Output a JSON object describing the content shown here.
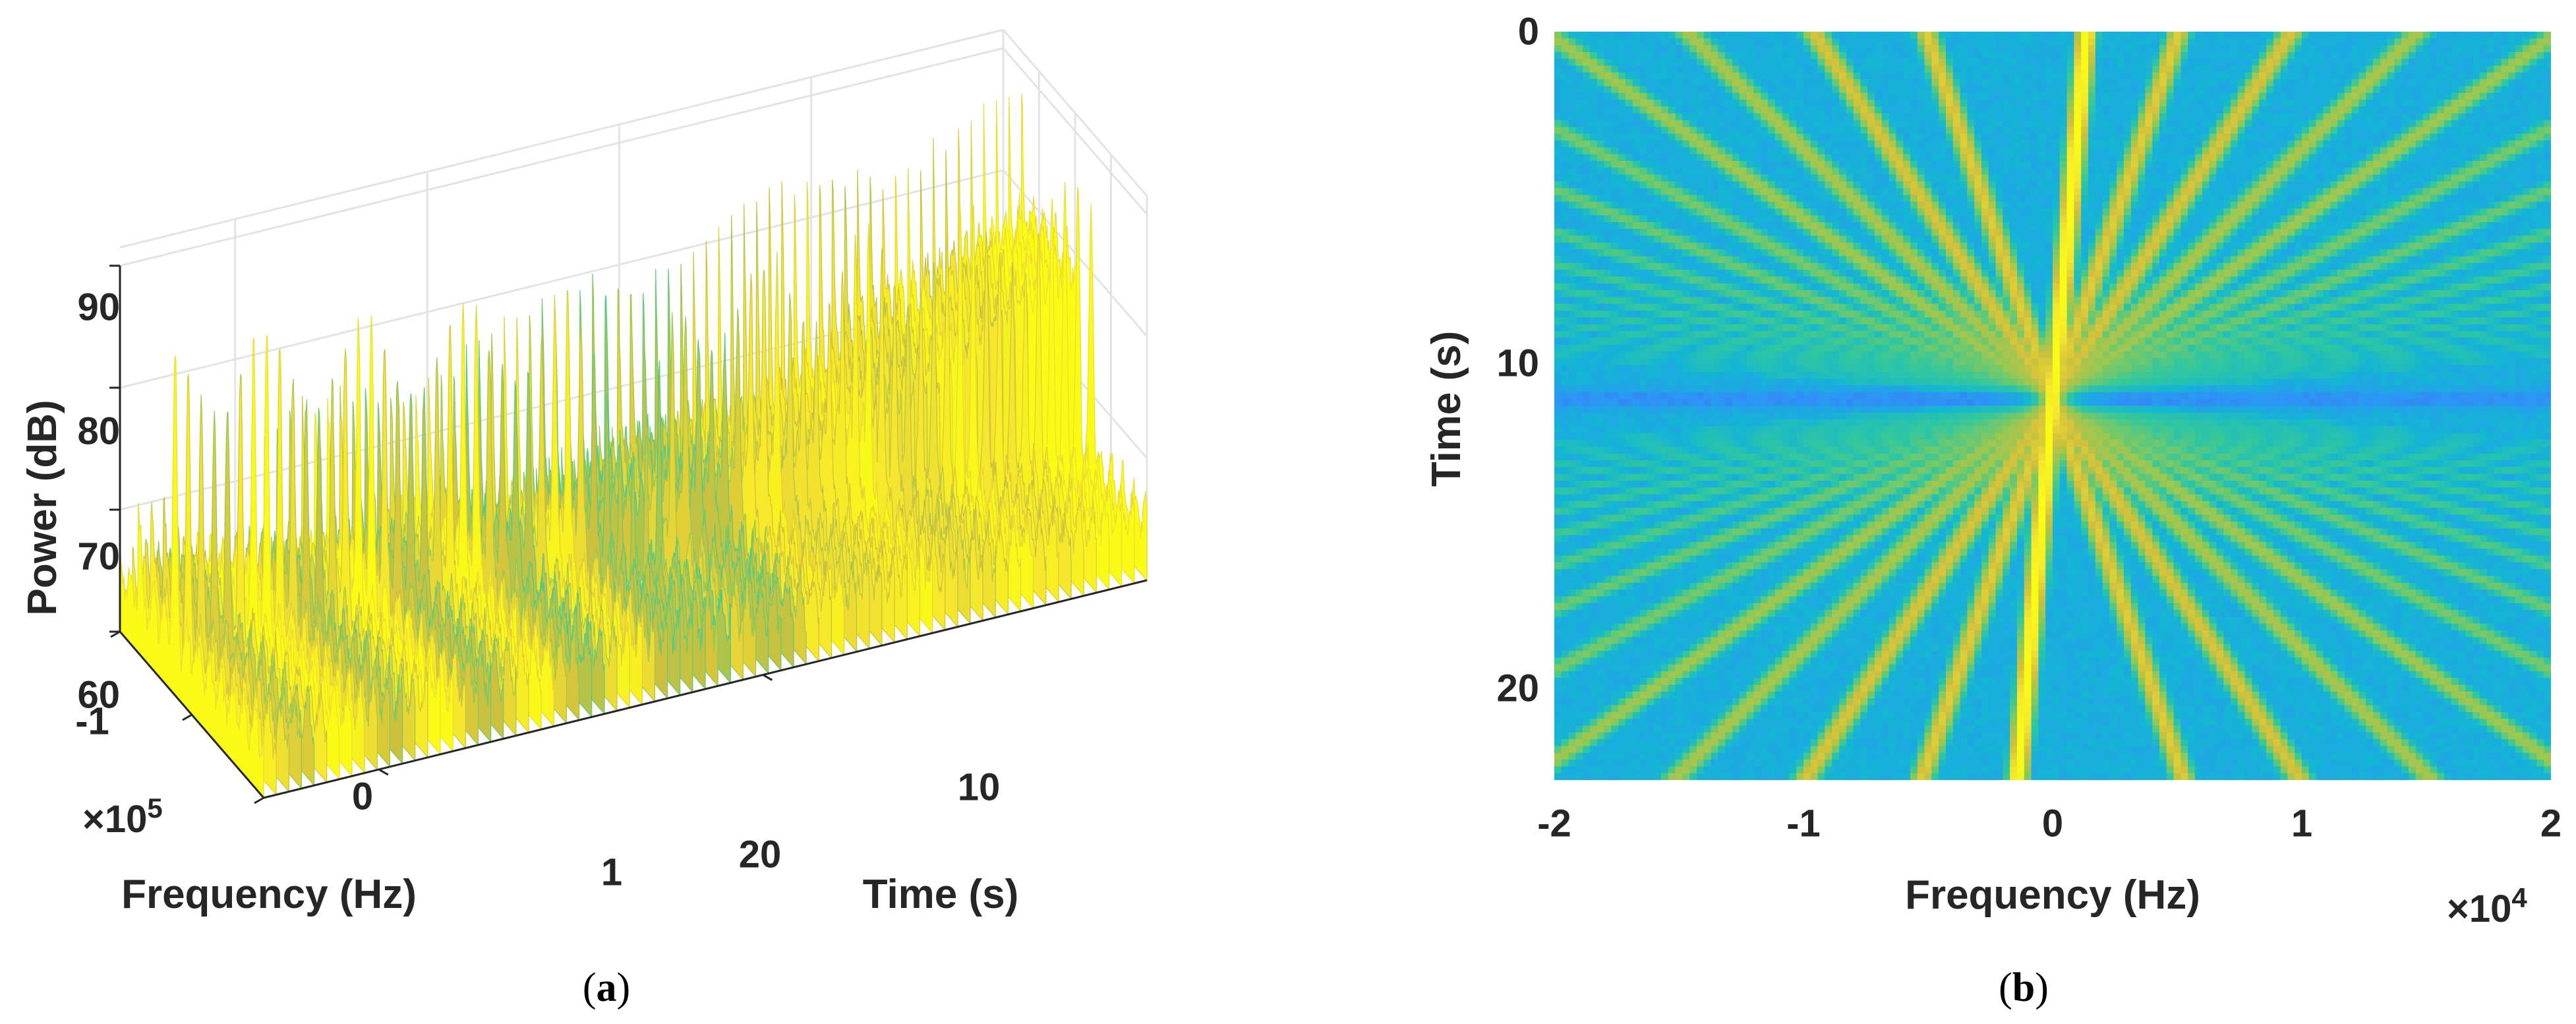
{
  "chart_data": [
    {
      "id": "a",
      "type": "surface3d",
      "caption": "(a)",
      "caption_open": "(",
      "caption_letter": "a",
      "caption_close": ")",
      "xlabel": "Frequency (Hz)",
      "ylabel": "Time (s)",
      "zlabel": "Power (dB)",
      "x_multiplier": "×10",
      "x_exponent": "5",
      "x_ticks": [
        "-1",
        "0",
        "1"
      ],
      "x_tick_values": [
        -1,
        0,
        1
      ],
      "xlim": [
        -1,
        1
      ],
      "y_ticks": [
        "10",
        "20"
      ],
      "y_tick_values": [
        10,
        20
      ],
      "ylim": [
        0,
        23
      ],
      "z_ticks": [
        "60",
        "70",
        "80",
        "90"
      ],
      "z_tick_values": [
        60,
        70,
        80,
        90
      ],
      "zlim": [
        60,
        90
      ],
      "grid": true,
      "noise_floor_db": 65,
      "peak_db": 88,
      "colormap": [
        "#3e26a8",
        "#4862f0",
        "#2c96f6",
        "#14b5d4",
        "#31c79e",
        "#88c95a",
        "#d1c03c",
        "#f5e52e",
        "#f9fb15"
      ]
    },
    {
      "id": "b",
      "type": "heatmap",
      "caption": "(b)",
      "caption_open": "(",
      "caption_letter": "b",
      "caption_close": ")",
      "xlabel": "Frequency (Hz)",
      "ylabel": "Time (s)",
      "x_multiplier": "×10",
      "x_exponent": "4",
      "x_ticks": [
        "-2",
        "-1",
        "0",
        "1",
        "2"
      ],
      "x_tick_values": [
        -2,
        -1,
        0,
        1,
        2
      ],
      "xlim": [
        -2,
        2
      ],
      "y_ticks": [
        "0",
        "10",
        "20"
      ],
      "y_tick_values": [
        0,
        10,
        20
      ],
      "ylim": [
        0,
        23
      ],
      "y_reversed": true,
      "crossing_time_s": 11.3,
      "main_chirp_rate": 0.012,
      "colormap": [
        "#3e26a8",
        "#4862f0",
        "#2c96f6",
        "#14b5d4",
        "#31c79e",
        "#88c95a",
        "#d1c03c",
        "#f5e52e",
        "#f9fb15"
      ]
    }
  ]
}
